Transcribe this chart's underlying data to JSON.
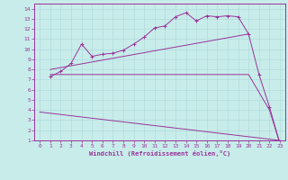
{
  "xlabel": "Windchill (Refroidissement éolien,°C)",
  "bg_color": "#c8ecea",
  "line_color": "#993399",
  "grid_color": "#b0dcdc",
  "xlim": [
    -0.5,
    23.5
  ],
  "ylim": [
    1,
    14.5
  ],
  "xticks": [
    0,
    1,
    2,
    3,
    4,
    5,
    6,
    7,
    8,
    9,
    10,
    11,
    12,
    13,
    14,
    15,
    16,
    17,
    18,
    19,
    20,
    21,
    22,
    23
  ],
  "yticks": [
    1,
    2,
    3,
    4,
    5,
    6,
    7,
    8,
    9,
    10,
    11,
    12,
    13,
    14
  ],
  "line1_x": [
    1,
    2,
    3,
    4,
    5,
    6,
    7,
    8,
    9,
    10,
    11,
    12,
    13,
    14,
    15,
    16,
    17,
    18,
    19,
    20,
    21,
    22,
    23
  ],
  "line1_y": [
    7.3,
    7.8,
    8.6,
    10.5,
    9.3,
    9.5,
    9.6,
    9.9,
    10.5,
    11.2,
    12.1,
    12.3,
    13.2,
    13.6,
    12.8,
    13.3,
    13.2,
    13.3,
    13.2,
    11.5,
    7.5,
    4.3,
    0.7
  ],
  "line2_x": [
    1,
    20
  ],
  "line2_y": [
    8.0,
    11.5
  ],
  "line3_x": [
    1,
    20,
    22,
    23
  ],
  "line3_y": [
    7.5,
    7.5,
    4.0,
    0.7
  ],
  "line4_x": [
    0,
    23
  ],
  "line4_y": [
    3.8,
    1.0
  ]
}
